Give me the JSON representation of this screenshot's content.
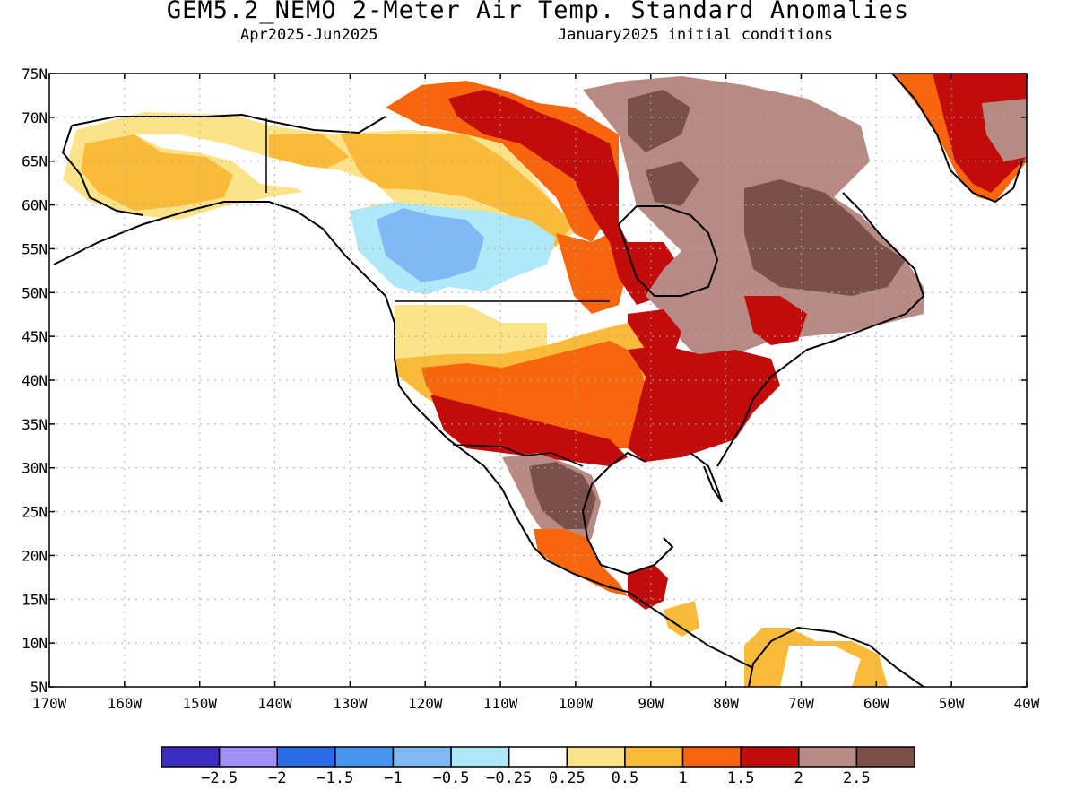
{
  "header": {
    "title": "GEM5.2_NEMO 2-Meter Air Temp. Standard Anomalies",
    "period": "Apr2025-Jun2025",
    "initial_conditions": "January2025 initial conditions"
  },
  "axes": {
    "lat_labels": [
      "75N",
      "70N",
      "65N",
      "60N",
      "55N",
      "50N",
      "45N",
      "40N",
      "35N",
      "30N",
      "25N",
      "20N",
      "15N",
      "10N",
      "5N"
    ],
    "lon_labels": [
      "170W",
      "160W",
      "150W",
      "140W",
      "130W",
      "120W",
      "110W",
      "100W",
      "90W",
      "80W",
      "70W",
      "60W",
      "50W",
      "40W"
    ]
  },
  "colorbar": {
    "colors": [
      "#3a2dbf",
      "#a290f8",
      "#2a6be6",
      "#4597ee",
      "#7fbaf4",
      "#b0e8f8",
      "#ffffff",
      "#fce38a",
      "#fbbb3a",
      "#f7660c",
      "#c20b0b",
      "#b88a84",
      "#7a5048"
    ],
    "labels": [
      "-2.5",
      "-2",
      "-1.5",
      "-1",
      "-0.5",
      "-0.25",
      "0.25",
      "0.5",
      "1",
      "1.5",
      "2",
      "2.5"
    ]
  },
  "regions": [
    {
      "name": "greenland-warm",
      "color": "#c20b0b"
    },
    {
      "name": "eastern-canada-brown",
      "color": "#7a5048"
    },
    {
      "name": "quebec-light-brown",
      "color": "#b88a84"
    },
    {
      "name": "prairies-cool",
      "color": "#b0e8f8"
    },
    {
      "name": "alberta-cool-core",
      "color": "#7fbaf4"
    },
    {
      "name": "alaska-yellow",
      "color": "#fbbb3a"
    },
    {
      "name": "us-southeast-warm",
      "color": "#c20b0b"
    },
    {
      "name": "us-plains-orange",
      "color": "#f7660c"
    },
    {
      "name": "mexico-brown",
      "color": "#7a5048"
    }
  ]
}
